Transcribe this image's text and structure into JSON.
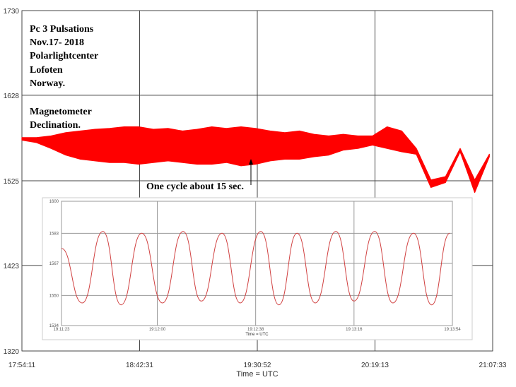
{
  "chart_data": [
    {
      "type": "area",
      "annotations": [
        "Pc 3 Pulsations",
        "Nov.17- 2018",
        "Polarlightcenter",
        "Lofoten",
        "Norway.",
        "Magnetometer",
        "Declination.",
        "One cycle about 15 sec."
      ],
      "xlabel": "Time = UTC",
      "xlim": [
        "17:54:11",
        "21:07:33"
      ],
      "xticks": [
        "17:54:11",
        "18:42:31",
        "19:30:52",
        "20:19:13",
        "21:07:33"
      ],
      "ylim": [
        1320,
        1730
      ],
      "yticks": [
        1320,
        1423,
        1525,
        1628,
        1730
      ],
      "grid": true,
      "x": [
        "17:54:11",
        "18:00:11",
        "18:06:11",
        "18:12:11",
        "18:18:11",
        "18:24:11",
        "18:30:11",
        "18:36:11",
        "18:42:11",
        "18:48:11",
        "18:54:11",
        "19:00:11",
        "19:06:11",
        "19:12:11",
        "19:18:11",
        "19:24:11",
        "19:30:11",
        "19:36:11",
        "19:42:11",
        "19:48:11",
        "19:54:11",
        "20:00:11",
        "20:06:11",
        "20:12:11",
        "20:18:11",
        "20:24:11",
        "20:30:11",
        "20:36:11",
        "20:42:11",
        "20:48:11",
        "20:54:11",
        "21:00:11",
        "21:06:11"
      ],
      "series": [
        {
          "color": "#ff0000",
          "values": [
            1577,
            1577,
            1579,
            1583,
            1585,
            1587,
            1588,
            1590,
            1590,
            1587,
            1588,
            1585,
            1587,
            1590,
            1588,
            1590,
            1588,
            1585,
            1583,
            1585,
            1581,
            1579,
            1581,
            1579,
            1579,
            1590,
            1585,
            1564,
            1526,
            1530,
            1564,
            1526,
            1557
          ]
        },
        {
          "color": "#ff0000",
          "values": [
            1574,
            1571,
            1564,
            1556,
            1551,
            1549,
            1547,
            1547,
            1545,
            1547,
            1549,
            1547,
            1545,
            1545,
            1547,
            1543,
            1545,
            1549,
            1551,
            1551,
            1554,
            1556,
            1562,
            1564,
            1568,
            1564,
            1560,
            1557,
            1517,
            1523,
            1560,
            1511,
            1554
          ]
        }
      ]
    },
    {
      "type": "line",
      "xlabel": "Time = UTC",
      "xlim": [
        "19:11:23",
        "19:13:54"
      ],
      "xticks": [
        "19:11:23",
        "19:12:00",
        "19:12:38",
        "19:13:16",
        "19:13:54"
      ],
      "ylim": [
        1534,
        1600
      ],
      "yticks": [
        1534,
        1550,
        1567,
        1583,
        1600
      ],
      "grid": true,
      "color": "#d04040",
      "x": [
        "19:11:23",
        "19:11:31",
        "19:11:39",
        "19:11:46",
        "19:11:54",
        "19:12:02",
        "19:12:10",
        "19:12:17",
        "19:12:25",
        "19:12:32",
        "19:12:40",
        "19:12:47",
        "19:12:54",
        "19:13:01",
        "19:13:09",
        "19:13:16",
        "19:13:24",
        "19:13:31",
        "19:13:39",
        "19:13:46",
        "19:13:53"
      ],
      "values": [
        1575,
        1546,
        1584,
        1545,
        1583,
        1546,
        1584,
        1547,
        1583,
        1546,
        1584,
        1545,
        1583,
        1546,
        1584,
        1547,
        1584,
        1546,
        1583,
        1545,
        1583
      ]
    }
  ]
}
